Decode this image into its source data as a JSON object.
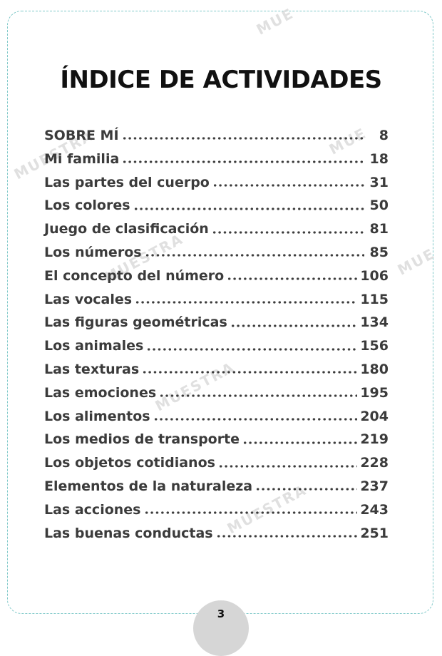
{
  "title": "ÍNDICE DE ACTIVIDADES",
  "entries": [
    {
      "label": "SOBRE MÍ",
      "page": "8"
    },
    {
      "label": "Mi familia",
      "page": "18"
    },
    {
      "label": "Las partes del cuerpo",
      "page": "31"
    },
    {
      "label": "Los colores",
      "page": "50"
    },
    {
      "label": "Juego de clasificación",
      "page": "81"
    },
    {
      "label": "Los números",
      "page": "85"
    },
    {
      "label": "El concepto del número",
      "page": "106"
    },
    {
      "label": "Las vocales",
      "page": "115"
    },
    {
      "label": "Las figuras geométricas",
      "page": "134"
    },
    {
      "label": "Los animales",
      "page": "156"
    },
    {
      "label": "Las texturas",
      "page": "180"
    },
    {
      "label": "Las emociones",
      "page": "195"
    },
    {
      "label": "Los alimentos",
      "page": "204"
    },
    {
      "label": "Los medios de transporte",
      "page": "219"
    },
    {
      "label": "Los objetos cotidianos",
      "page": "228"
    },
    {
      "label": "Elementos de la naturaleza",
      "page": "237"
    },
    {
      "label": "Las acciones",
      "page": "243"
    },
    {
      "label": "Las buenas conductas",
      "page": "251"
    }
  ],
  "watermarks": [
    "MUE",
    "MUESTRA",
    "MUE",
    "MUESTRA",
    "MUE",
    "MUESTRA",
    "MUESTRA",
    "MUESTRA"
  ],
  "page_number": "3",
  "colors": {
    "frame": "#7ec8c8",
    "text": "#3b3b3b",
    "badge": "#d6d6d6"
  }
}
